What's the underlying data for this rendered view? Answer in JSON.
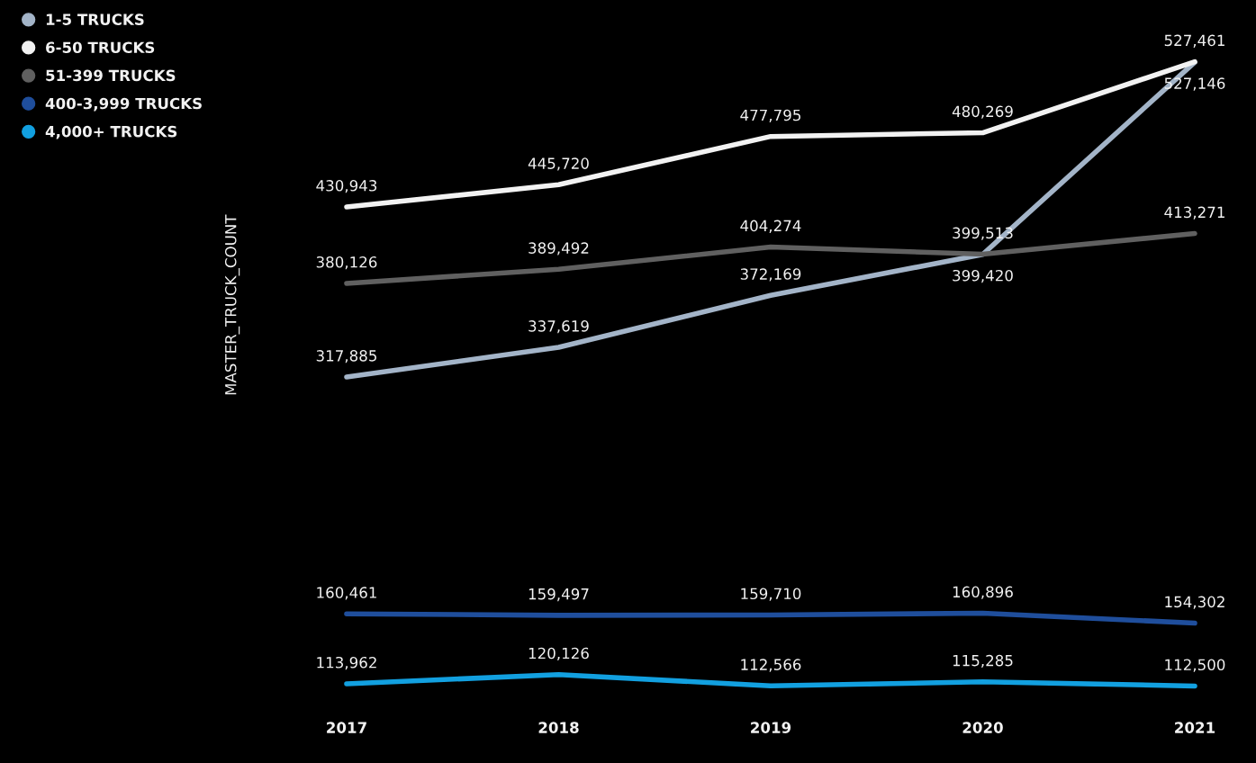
{
  "chart_data": {
    "type": "line",
    "ylabel": "MASTER_TRUCK_COUNT",
    "categories": [
      "2017",
      "2018",
      "2019",
      "2020",
      "2021"
    ],
    "series": [
      {
        "name": "1-5 TRUCKS",
        "color": "#a3b4c8",
        "values": [
          317885,
          337619,
          372169,
          399420,
          527146
        ],
        "value_labels": [
          "317,885",
          "337,619",
          "372,169",
          "399,420",
          "527,146"
        ]
      },
      {
        "name": "6-50 TRUCKS",
        "color": "#f2f2f2",
        "values": [
          430943,
          445720,
          477795,
          480269,
          527461
        ],
        "value_labels": [
          "430,943",
          "445,720",
          "477,795",
          "480,269",
          "527,461"
        ]
      },
      {
        "name": "51-399 TRUCKS",
        "color": "#606060",
        "values": [
          380126,
          389492,
          404274,
          399513,
          413271
        ],
        "value_labels": [
          "380,126",
          "389,492",
          "404,274",
          "399,513",
          "413,271"
        ]
      },
      {
        "name": "400-3,999 TRUCKS",
        "color": "#1f4e9c",
        "values": [
          160461,
          159497,
          159710,
          160896,
          154302
        ],
        "value_labels": [
          "160,461",
          "159,497",
          "159,710",
          "160,896",
          "154,302"
        ]
      },
      {
        "name": "4,000+ TRUCKS",
        "color": "#12a0e0",
        "values": [
          113962,
          120126,
          112566,
          115285,
          112500
        ],
        "value_labels": [
          "113,962",
          "120,126",
          "112,566",
          "115,285",
          "112,500"
        ]
      }
    ],
    "legend": "top left",
    "tick_labels": "x",
    "grid": false,
    "marker": "none",
    "line_style": "solid"
  }
}
